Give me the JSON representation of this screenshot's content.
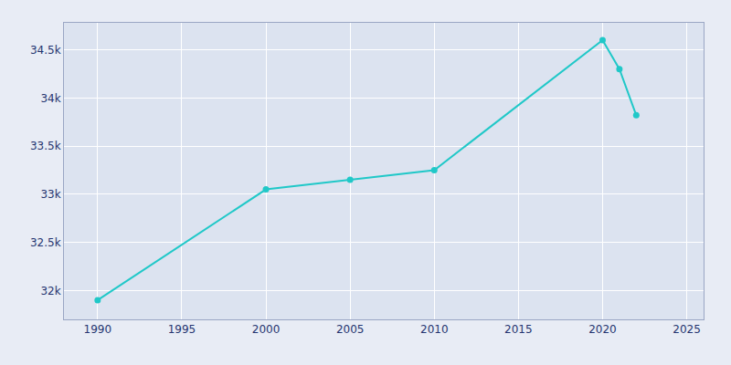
{
  "chart_data": {
    "type": "line",
    "x": [
      1990,
      2000,
      2005,
      2010,
      2020,
      2021,
      2022
    ],
    "values": [
      31900,
      33050,
      33150,
      33250,
      34600,
      34300,
      33820
    ],
    "color": "#20C8C8",
    "marker": "circle",
    "xlim": [
      1988,
      2026
    ],
    "xticks": [
      1990,
      1995,
      2000,
      2005,
      2010,
      2015,
      2020,
      2025
    ],
    "ylim": [
      31700,
      34780
    ],
    "yticks": [
      {
        "value": 32000,
        "label": "32k"
      },
      {
        "value": 32500,
        "label": "32.5k"
      },
      {
        "value": 33000,
        "label": "33k"
      },
      {
        "value": 33500,
        "label": "33.5k"
      },
      {
        "value": 34000,
        "label": "34k"
      },
      {
        "value": 34500,
        "label": "34.5k"
      }
    ],
    "grid": true
  }
}
